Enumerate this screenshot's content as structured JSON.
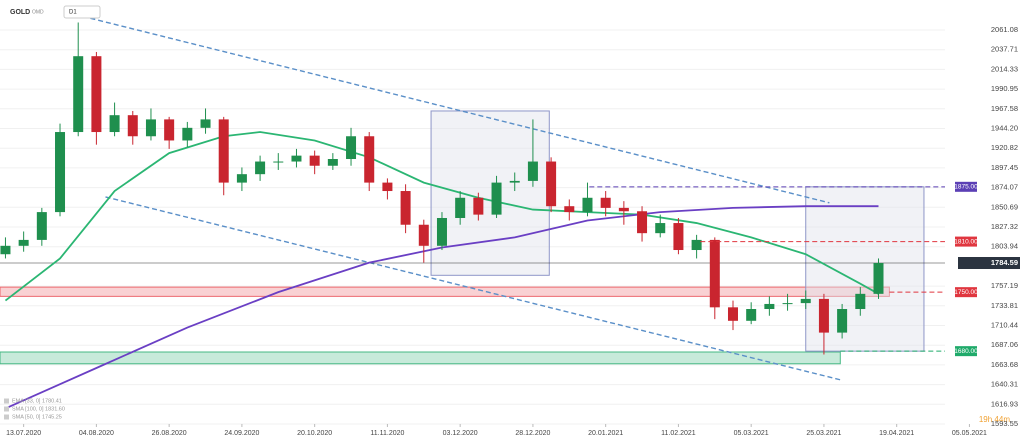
{
  "chart_data": {
    "type": "candlestick",
    "symbol": "GOLD",
    "symbol_sub": "OMD",
    "timeframe": "D1",
    "x": [
      0,
      1,
      2,
      3,
      4,
      5,
      6,
      7,
      8,
      9,
      10,
      11,
      12,
      13,
      14,
      15,
      16,
      17,
      18,
      19,
      20,
      21,
      22,
      23,
      24,
      25,
      26,
      27,
      28,
      29,
      30,
      31,
      32,
      33,
      34,
      35,
      36,
      37,
      38,
      39,
      40,
      41,
      42,
      43,
      44,
      45,
      46,
      47,
      48
    ],
    "open": [
      1795,
      1805,
      1812,
      1845,
      1940,
      2030,
      1940,
      1960,
      1935,
      1955,
      1930,
      1945,
      1955,
      1880,
      1890,
      1905,
      1905,
      1912,
      1900,
      1908,
      1935,
      1880,
      1870,
      1830,
      1805,
      1838,
      1862,
      1842,
      1880,
      1882,
      1905,
      1852,
      1845,
      1862,
      1850,
      1846,
      1820,
      1832,
      1800,
      1812,
      1732,
      1716,
      1730,
      1736,
      1737,
      1742,
      1702,
      1730,
      1748
    ],
    "high": [
      1815,
      1822,
      1850,
      1950,
      2070,
      2035,
      1975,
      1965,
      1968,
      1958,
      1952,
      1968,
      1958,
      1898,
      1912,
      1915,
      1920,
      1918,
      1915,
      1945,
      1940,
      1885,
      1878,
      1836,
      1845,
      1870,
      1868,
      1888,
      1892,
      1955,
      1910,
      1860,
      1880,
      1870,
      1858,
      1852,
      1842,
      1838,
      1818,
      1815,
      1740,
      1738,
      1745,
      1748,
      1752,
      1748,
      1736,
      1756,
      1790
    ],
    "low": [
      1790,
      1798,
      1805,
      1840,
      1935,
      1925,
      1935,
      1925,
      1930,
      1920,
      1922,
      1938,
      1865,
      1870,
      1882,
      1895,
      1898,
      1890,
      1895,
      1900,
      1870,
      1860,
      1820,
      1785,
      1800,
      1830,
      1835,
      1838,
      1870,
      1875,
      1845,
      1835,
      1840,
      1840,
      1830,
      1810,
      1815,
      1795,
      1790,
      1718,
      1705,
      1712,
      1722,
      1728,
      1730,
      1676,
      1695,
      1722,
      1742
    ],
    "close": [
      1805,
      1812,
      1845,
      1940,
      2030,
      1940,
      1960,
      1935,
      1955,
      1930,
      1945,
      1955,
      1880,
      1890,
      1905,
      1905,
      1912,
      1900,
      1908,
      1935,
      1880,
      1870,
      1830,
      1805,
      1838,
      1862,
      1842,
      1880,
      1882,
      1905,
      1852,
      1845,
      1862,
      1850,
      1846,
      1820,
      1832,
      1800,
      1812,
      1732,
      1716,
      1730,
      1736,
      1737,
      1742,
      1702,
      1730,
      1748,
      1784.59
    ],
    "up_color": "#1f8f4e",
    "down_color": "#c9252f",
    "xlim": [
      -0.3,
      56
    ],
    "xticks": [
      {
        "value": 1,
        "label": "13.07.2020"
      },
      {
        "value": 5,
        "label": "04.08.2020"
      },
      {
        "value": 9,
        "label": "26.08.2020"
      },
      {
        "value": 13,
        "label": "24.09.2020"
      },
      {
        "value": 17,
        "label": "20.10.2020"
      },
      {
        "value": 21,
        "label": "11.11.2020"
      },
      {
        "value": 25,
        "label": "03.12.2020"
      },
      {
        "value": 29,
        "label": "28.12.2020"
      },
      {
        "value": 33,
        "label": "20.01.2021"
      },
      {
        "value": 37,
        "label": "11.02.2021"
      },
      {
        "value": 41,
        "label": "05.03.2021"
      },
      {
        "value": 45,
        "label": "25.03.2021"
      },
      {
        "value": 49,
        "label": "19.04.2021"
      },
      {
        "value": 53,
        "label": "05.05.2021"
      }
    ],
    "ylim": [
      1572.19,
      2096.68
    ],
    "yticks": [
      2061.08,
      2037.71,
      2014.33,
      1990.95,
      1967.58,
      {
        "value": 1944.2,
        "label": "1944.20"
      },
      1920.82,
      1897.45,
      1874.07,
      1850.69,
      1827.32,
      1803.94,
      1757.19,
      1733.81,
      1710.44,
      1687.06,
      1663.68,
      1640.31,
      1616.93,
      1593.55
    ],
    "last_price": 1784.59,
    "indicators": [
      {
        "color": "#2bb673",
        "x": [
          0,
          3,
          6,
          9,
          12,
          14,
          17,
          20,
          23,
          26,
          29,
          32,
          35,
          38,
          41,
          44,
          47,
          48
        ],
        "values": [
          1740,
          1790,
          1870,
          1915,
          1935,
          1940,
          1930,
          1910,
          1880,
          1862,
          1848,
          1845,
          1842,
          1832,
          1815,
          1795,
          1760,
          1748
        ]
      },
      {
        "color": "#6a3fc4",
        "x": [
          0,
          5,
          10,
          15,
          20,
          24,
          28,
          32,
          36,
          40,
          44,
          48
        ],
        "values": [
          1612,
          1660,
          1708,
          1750,
          1785,
          1803,
          1815,
          1835,
          1845,
          1850,
          1852,
          1852
        ]
      }
    ],
    "legend": [
      "EMA [33, 0] 1780.41",
      "SMA [100, 0] 1831.60",
      "SMA [50, 0] 1745.25"
    ],
    "levels": [
      {
        "value": 1875,
        "label": "1875.00",
        "color": "#5b3fb5",
        "from": 32.1
      },
      {
        "value": 1810,
        "label": "1810.00",
        "color": "#e0363f",
        "from": 38.2
      },
      {
        "value": 1750,
        "label": "1750.00",
        "color": "#e0363f",
        "from": 48.6
      },
      {
        "value": 1680,
        "label": "1680.00",
        "color": "#1faa6a",
        "from": 45.9
      }
    ],
    "zones": [
      {
        "from_value": 1745,
        "to_value": 1756,
        "x_start": -0.3,
        "x_end": 48.6,
        "color": "#e8474f"
      },
      {
        "from_value": 1665,
        "to_value": 1679,
        "x_start": -0.3,
        "x_end": 45.9,
        "color": "#1faa6a"
      }
    ],
    "boxes": [
      {
        "x0": 23.4,
        "x1": 29.9,
        "y0": 1770,
        "y1": 1965
      },
      {
        "x0": 44,
        "x1": 50.5,
        "y0": 1680,
        "y1": 1875
      }
    ],
    "trendlines": [
      {
        "x": [
          4.67,
          45.3
        ],
        "values": [
          2075,
          1856
        ]
      },
      {
        "x": [
          5.5,
          45.9
        ],
        "values": [
          1863,
          1646
        ]
      }
    ],
    "timer": "19h 44m"
  }
}
